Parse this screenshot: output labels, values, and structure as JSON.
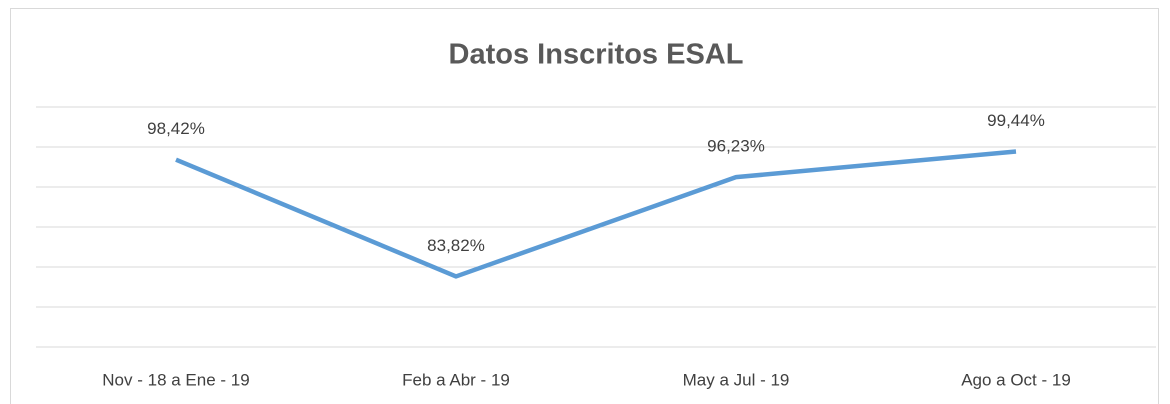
{
  "chart_data": {
    "type": "line",
    "title": "Datos Inscritos ESAL",
    "categories": [
      "Nov - 18 a Ene - 19",
      "Feb a Abr - 19",
      "May a Jul - 19",
      "Ago a Oct - 19"
    ],
    "series": [
      {
        "name": "Datos Inscritos ESAL",
        "color": "#5b9bd5",
        "values": [
          98.42,
          83.82,
          96.23,
          99.44
        ],
        "value_labels": [
          "98,42%",
          "83,82%",
          "96,23%",
          "99,44%"
        ]
      }
    ],
    "ylim": [
      75,
      105
    ],
    "yticks": [
      75,
      80,
      85,
      90,
      95,
      100,
      105
    ],
    "grid": true
  }
}
